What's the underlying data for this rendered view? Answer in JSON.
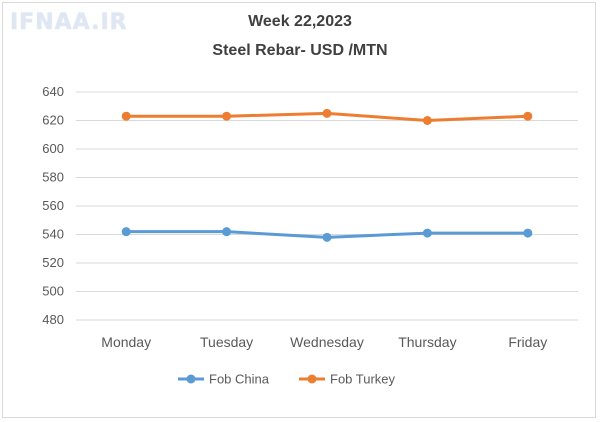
{
  "watermark": "IFNAA.IR",
  "chart_data": {
    "type": "line",
    "title": "Week 22,2023",
    "subtitle": "Steel Rebar- USD /MTN",
    "xlabel": "",
    "ylabel": "",
    "categories": [
      "Monday",
      "Tuesday",
      "Wednesday",
      "Thursday",
      "Friday"
    ],
    "ylim": [
      480,
      640
    ],
    "yticks": [
      480,
      500,
      520,
      540,
      560,
      580,
      600,
      620,
      640
    ],
    "grid": true,
    "legend_position": "bottom",
    "series": [
      {
        "name": "Fob China",
        "color": "#5b9bd5",
        "values": [
          542,
          542,
          538,
          541,
          541
        ]
      },
      {
        "name": "Fob Turkey",
        "color": "#ed7d31",
        "values": [
          623,
          623,
          625,
          620,
          623
        ]
      }
    ]
  }
}
